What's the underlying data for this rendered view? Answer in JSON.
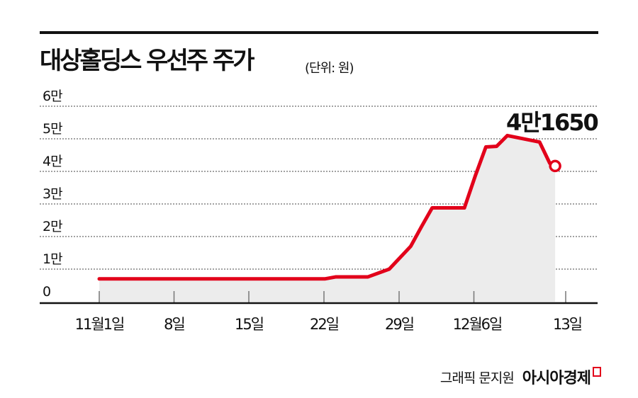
{
  "header": {
    "title": "대상홀딩스 우선주 주가",
    "unit": "(단위: 원)"
  },
  "footer": {
    "credit": "그래픽 문지원",
    "brand": "아시아경제"
  },
  "colors": {
    "line": "#e2001a",
    "fill": "#ececec",
    "grid": "#444444",
    "axis": "#111111"
  },
  "callout": {
    "label": "4만1650"
  },
  "chart_data": {
    "type": "line",
    "title": "대상홀딩스 우선주 주가",
    "subtitle": "(단위: 원)",
    "xlabel": "",
    "ylabel": "원",
    "ylim": [
      0,
      60000
    ],
    "y_ticks": [
      0,
      10000,
      20000,
      30000,
      40000,
      50000,
      60000
    ],
    "y_tick_labels": [
      "0",
      "1만",
      "2만",
      "3만",
      "4만",
      "5만",
      "6만"
    ],
    "x_tick_labels": [
      "11월1일",
      "8일",
      "15일",
      "22일",
      "29일",
      "12월6일",
      "13일"
    ],
    "grid": true,
    "legend": null,
    "annotations": [
      {
        "text": "4만1650",
        "at": "13일",
        "value": 41650
      }
    ],
    "series": [
      {
        "name": "대상홀딩스 우선주",
        "points": [
          {
            "x": "11월1일",
            "y": 7000
          },
          {
            "x": "11월22일",
            "y": 7000
          },
          {
            "x": "11월23일",
            "y": 7600
          },
          {
            "x": "11월26일",
            "y": 7600
          },
          {
            "x": "11월28일",
            "y": 10000
          },
          {
            "x": "11월30일",
            "y": 17000
          },
          {
            "x": "12월1일",
            "y": 23000
          },
          {
            "x": "12월2일",
            "y": 28800
          },
          {
            "x": "12월5일",
            "y": 28800
          },
          {
            "x": "12월6일",
            "y": 38500
          },
          {
            "x": "12월7일",
            "y": 47500
          },
          {
            "x": "12월8일",
            "y": 47700
          },
          {
            "x": "12월9일",
            "y": 51000
          },
          {
            "x": "12월12일",
            "y": 49000
          },
          {
            "x": "12월12일b",
            "y": 42500
          },
          {
            "x": "12월13일",
            "y": 41650
          }
        ]
      }
    ]
  }
}
